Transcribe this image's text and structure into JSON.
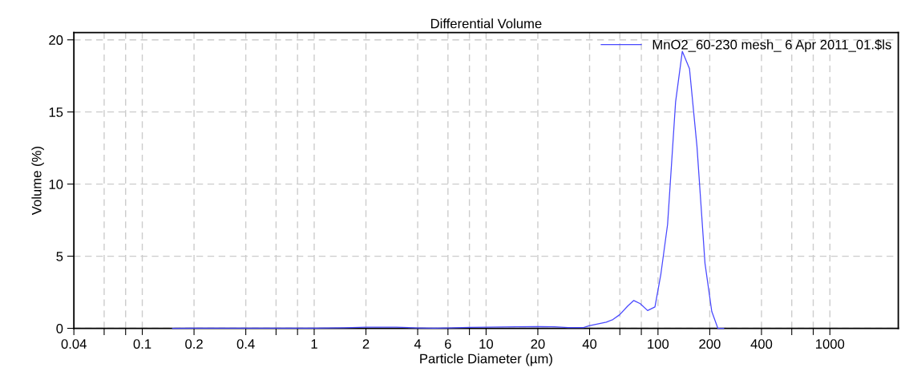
{
  "chart_data": {
    "type": "line",
    "title": "Differential Volume",
    "xlabel": "Particle Diameter (µm)",
    "ylabel": "Volume (%)",
    "log": "x",
    "grid": true,
    "legend": "top right",
    "marker": "none",
    "line_style": "solid",
    "xlim": [
      0.04,
      2500
    ],
    "ylim": [
      0,
      20.5
    ],
    "xticks": [
      0.04,
      {
        "value": 0.06,
        "label": null
      },
      {
        "value": 0.08,
        "label": null
      },
      0.1,
      0.2,
      0.4,
      {
        "value": 0.6,
        "label": null
      },
      {
        "value": 0.8,
        "label": null
      },
      1,
      2,
      4,
      6,
      {
        "value": 8,
        "label": null
      },
      10,
      20,
      40,
      {
        "value": 60,
        "label": null
      },
      {
        "value": 80,
        "label": null
      },
      100,
      200,
      400,
      {
        "value": 600,
        "label": null
      },
      {
        "value": 800,
        "label": null
      },
      1000
    ],
    "yticks": [
      0,
      5,
      10,
      15,
      20
    ],
    "series": [
      {
        "name": "MnO2_60-230 mesh_ 6 Apr 2011_01.$ls",
        "color": "#4848ff",
        "x": [
          0.15,
          0.2,
          0.5,
          1,
          1.5,
          2,
          3,
          4,
          5,
          6,
          8,
          10,
          15,
          20,
          25,
          30,
          36.9,
          39.7,
          50,
          54.7,
          59.8,
          66.5,
          72.3,
          78.8,
          87,
          96,
          104,
          113.7,
          126.6,
          138.5,
          152.5,
          168.6,
          187.7,
          205.5,
          223,
          241
        ],
        "values": [
          0,
          0.01,
          0.01,
          0.01,
          0.04,
          0.08,
          0.08,
          0.03,
          0.01,
          0.03,
          0.06,
          0.08,
          0.1,
          0.12,
          0.1,
          0.05,
          0.05,
          0.18,
          0.43,
          0.61,
          0.94,
          1.53,
          1.93,
          1.71,
          1.23,
          1.48,
          3.78,
          7.2,
          15.7,
          19.2,
          18.0,
          12.6,
          4.5,
          1.17,
          0,
          0
        ]
      }
    ]
  }
}
